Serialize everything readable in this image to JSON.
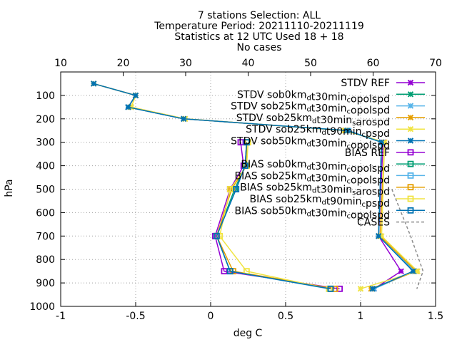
{
  "chart_data": {
    "type": "line",
    "title_lines": [
      "7 stations Selection: ALL",
      "Temperature  Period: 20211110-20211119",
      "Statistics at 12 UTC  Used 18 + 18",
      "No cases"
    ],
    "xlabel": "deg C",
    "ylabel": "hPa",
    "xlim": [
      -1,
      1.5
    ],
    "ylim": [
      1000,
      0
    ],
    "x2lim": [
      10,
      70
    ],
    "x_ticks": [
      "-1",
      "-0.5",
      "0",
      "0.5",
      "1",
      "1.5"
    ],
    "x2_ticks": [
      "10",
      "20",
      "30",
      "40",
      "50",
      "60",
      "70"
    ],
    "y_ticks": [
      "100",
      "200",
      "300",
      "400",
      "500",
      "600",
      "700",
      "800",
      "900",
      "1000"
    ],
    "grid": true,
    "legend_position": "top-right",
    "levels": [
      50,
      100,
      150,
      200,
      250,
      300,
      400,
      500,
      700,
      850,
      925
    ],
    "series": [
      {
        "name": "STDV REF",
        "color": "#9400d3",
        "marker": "x",
        "values": [
          -0.78,
          -0.5,
          -0.55,
          -0.18,
          0.9,
          1.15,
          null,
          null,
          1.12,
          1.27,
          1.09
        ]
      },
      {
        "name": "STDV sob0km_{d}t30min_{c}opolspd",
        "color": "#009e73",
        "marker": "x",
        "values": [
          -0.78,
          -0.5,
          -0.55,
          -0.18,
          0.91,
          1.14,
          null,
          null,
          1.12,
          1.36,
          1.08
        ]
      },
      {
        "name": "STDV sob25km_{d}t30min_{c}opolspd",
        "color": "#56b4e9",
        "marker": "x",
        "values": [
          -0.78,
          -0.5,
          -0.55,
          -0.18,
          0.92,
          1.14,
          null,
          null,
          1.12,
          1.36,
          1.09
        ]
      },
      {
        "name": "STDV sob25km_{d}t30min_{s}arospd",
        "color": "#e69f00",
        "marker": "x",
        "values": [
          -0.78,
          -0.5,
          -0.53,
          -0.17,
          0.9,
          1.16,
          null,
          null,
          1.13,
          1.37,
          1.07
        ]
      },
      {
        "name": "STDV sob25km_{d}t90min_{c}pspd",
        "color": "#f0e442",
        "marker": "x",
        "values": [
          -0.78,
          -0.5,
          -0.53,
          -0.17,
          0.89,
          1.16,
          null,
          null,
          1.14,
          1.38,
          1.0
        ]
      },
      {
        "name": "STDV sob50km_{d}t30min_{c}opolspd",
        "color": "#0072b2",
        "marker": "x",
        "values": [
          -0.78,
          -0.5,
          -0.55,
          -0.18,
          0.91,
          1.14,
          null,
          null,
          1.12,
          1.35,
          1.08
        ]
      },
      {
        "name": "BIAS REF",
        "color": "#9400d3",
        "marker": "square",
        "values": [
          null,
          null,
          null,
          null,
          null,
          0.2,
          0.22,
          0.13,
          0.03,
          0.09,
          0.86
        ]
      },
      {
        "name": "BIAS sob0km_{d}t30min_{c}opolspd",
        "color": "#009e73",
        "marker": "square",
        "values": [
          null,
          null,
          null,
          null,
          null,
          0.24,
          0.23,
          0.16,
          0.04,
          0.13,
          0.8
        ]
      },
      {
        "name": "BIAS sob25km_{d}t30min_{c}opolspd",
        "color": "#56b4e9",
        "marker": "square",
        "values": [
          null,
          null,
          null,
          null,
          null,
          0.24,
          0.23,
          0.17,
          0.04,
          0.13,
          0.79
        ]
      },
      {
        "name": "BIAS sob25km_{d}t30min_{s}arospd",
        "color": "#e69f00",
        "marker": "square",
        "values": [
          null,
          null,
          null,
          null,
          null,
          0.24,
          0.24,
          0.14,
          0.04,
          0.15,
          0.83
        ]
      },
      {
        "name": "BIAS sob25km_{d}t90min_{c}pspd",
        "color": "#f0e442",
        "marker": "square",
        "values": [
          null,
          null,
          null,
          null,
          null,
          0.25,
          0.24,
          0.13,
          0.06,
          0.24,
          0.79
        ]
      },
      {
        "name": "BIAS sob50km_{d}t30min_{c}opolspd",
        "color": "#0072b2",
        "marker": "square",
        "values": [
          null,
          null,
          null,
          null,
          null,
          0.24,
          0.23,
          0.17,
          0.04,
          0.13,
          0.8
        ]
      }
    ],
    "cases": {
      "name": "CASES",
      "color": "#8c8c8c",
      "levels": [
        50,
        100,
        150,
        200,
        250,
        300,
        400,
        500,
        700,
        850,
        925
      ],
      "values": [
        null,
        null,
        null,
        null,
        null,
        null,
        null,
        63,
        66,
        68,
        67
      ]
    }
  }
}
